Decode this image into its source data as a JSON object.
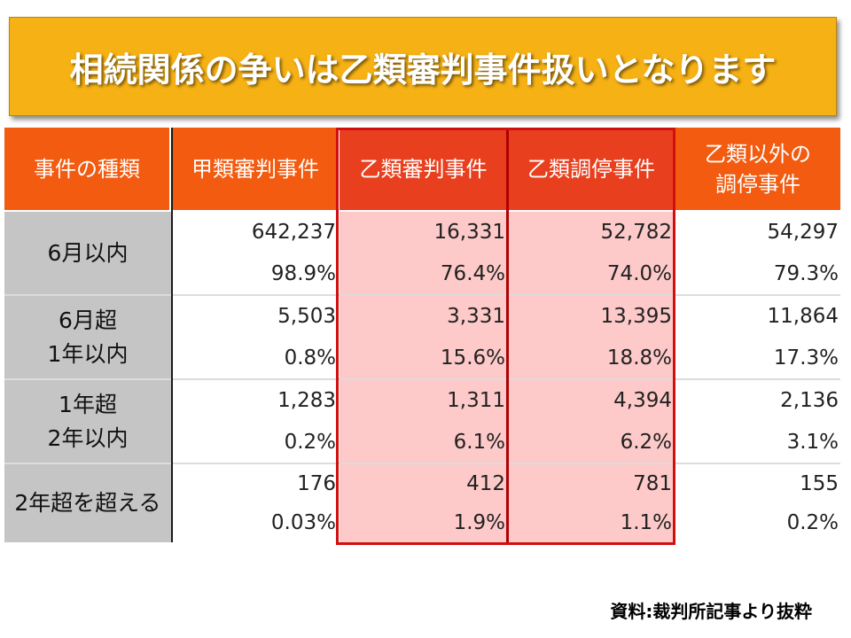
{
  "title": "相続関係の争いは乙類審判事件扱いとなります",
  "headers": [
    "事件の種類",
    "甲類審判事件",
    "乙類審判事件",
    "乙類調停事件",
    "乙類以外の\n調停事件"
  ],
  "rows": [
    {
      "label": "6月以内",
      "counts": [
        "642,237",
        "16,331",
        "52,782",
        "54,297"
      ],
      "pcts": [
        "98.9%",
        "76.4%",
        "74.0%",
        "79.3%"
      ]
    },
    {
      "label": "6月超\n1年以内",
      "counts": [
        "5,503",
        "3,331",
        "13,395",
        "11,864"
      ],
      "pcts": [
        "0.8%",
        "15.6%",
        "18.8%",
        "17.3%"
      ]
    },
    {
      "label": "1年超\n2年以内",
      "counts": [
        "1,283",
        "1,311",
        "4,394",
        "2,136"
      ],
      "pcts": [
        "0.2%",
        "6.1%",
        "6.2%",
        "3.1%"
      ]
    },
    {
      "label": "2年超を超える",
      "counts": [
        "176",
        "412",
        "781",
        "155"
      ],
      "pcts": [
        "0.03%",
        "1.9%",
        "1.1%",
        "0.2%"
      ]
    }
  ],
  "source": "資料:裁判所記事より抜粋",
  "colors": {
    "title_bg": "#f6b114",
    "header_bg": "#f25b10",
    "highlight_bg": "#fdc9c9",
    "highlight_border": "#d10f0f",
    "label_bg": "#c5c5c5"
  }
}
